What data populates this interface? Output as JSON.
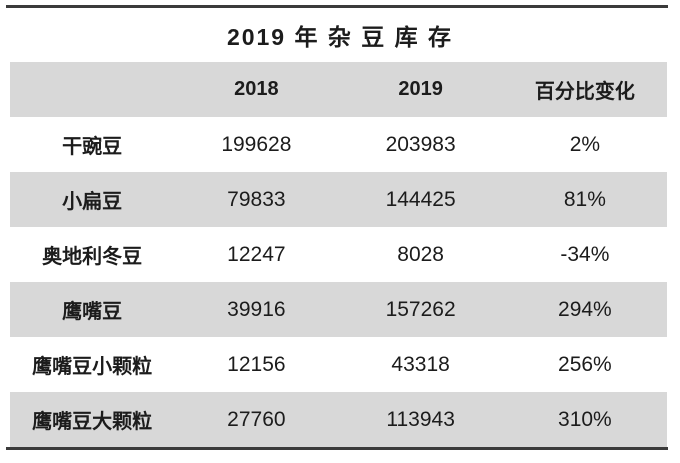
{
  "title": "2019 年 杂 豆 库 存",
  "colors": {
    "stripe_gray": "#d8d8d8",
    "rule_dark": "#3b3b3b",
    "text": "#1c1c1c",
    "background": "#ffffff"
  },
  "table": {
    "headers": [
      "",
      "2018",
      "2019",
      "百分比变化"
    ],
    "rows": [
      {
        "name": "干豌豆",
        "y2018": "199628",
        "y2019": "203983",
        "change": "2%"
      },
      {
        "name": "小扁豆",
        "y2018": "79833",
        "y2019": "144425",
        "change": "81%"
      },
      {
        "name": "奥地利冬豆",
        "y2018": "12247",
        "y2019": "8028",
        "change": "-34%"
      },
      {
        "name": "鹰嘴豆",
        "y2018": "39916",
        "y2019": "157262",
        "change": "294%"
      },
      {
        "name": "鹰嘴豆小颗粒",
        "y2018": "12156",
        "y2019": "43318",
        "change": "256%"
      },
      {
        "name": "鹰嘴豆大颗粒",
        "y2018": "27760",
        "y2019": "113943",
        "change": "310%"
      }
    ]
  },
  "chart_data": {
    "type": "table",
    "title": "2019 年 杂 豆 库 存",
    "columns": [
      "",
      "2018",
      "2019",
      "百分比变化"
    ],
    "rows": [
      [
        "干豌豆",
        199628,
        203983,
        "2%"
      ],
      [
        "小扁豆",
        79833,
        144425,
        "81%"
      ],
      [
        "奥地利冬豆",
        12247,
        8028,
        "-34%"
      ],
      [
        "鹰嘴豆",
        39916,
        157262,
        "294%"
      ],
      [
        "鹰嘴豆小颗粒",
        12156,
        43318,
        "256%"
      ],
      [
        "鹰嘴豆大颗粒",
        27760,
        113943,
        "310%"
      ]
    ],
    "layout": {
      "header_background": "#d8d8d8",
      "zebra_stripes": true,
      "top_bottom_rules": true,
      "cell_alignment": "center"
    }
  }
}
